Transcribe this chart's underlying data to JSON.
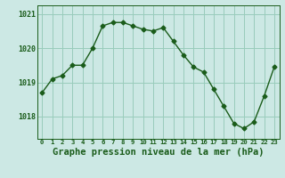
{
  "hours": [
    0,
    1,
    2,
    3,
    4,
    5,
    6,
    7,
    8,
    9,
    10,
    11,
    12,
    13,
    14,
    15,
    16,
    17,
    18,
    19,
    20,
    21,
    22,
    23
  ],
  "pressure": [
    1018.7,
    1019.1,
    1019.2,
    1019.5,
    1019.5,
    1020.0,
    1020.65,
    1020.75,
    1020.75,
    1020.65,
    1020.55,
    1020.5,
    1020.6,
    1020.2,
    1019.8,
    1019.45,
    1019.3,
    1018.8,
    1018.3,
    1017.8,
    1017.65,
    1017.85,
    1018.6,
    1019.45
  ],
  "line_color": "#1a5c1a",
  "marker": "D",
  "marker_size": 2.5,
  "bg_color": "#cce8e4",
  "grid_color": "#99ccbb",
  "xlabel": "Graphe pression niveau de la mer (hPa)",
  "xlabel_fontsize": 7.5,
  "tick_label_color": "#1a5c1a",
  "axis_label_color": "#1a5c1a",
  "ylim": [
    1017.35,
    1021.25
  ],
  "yticks": [
    1018,
    1019,
    1020,
    1021
  ],
  "xtick_labels": [
    "0",
    "1",
    "2",
    "3",
    "4",
    "5",
    "6",
    "7",
    "8",
    "9",
    "10",
    "11",
    "12",
    "13",
    "14",
    "15",
    "16",
    "17",
    "18",
    "19",
    "20",
    "21",
    "22",
    "23"
  ]
}
